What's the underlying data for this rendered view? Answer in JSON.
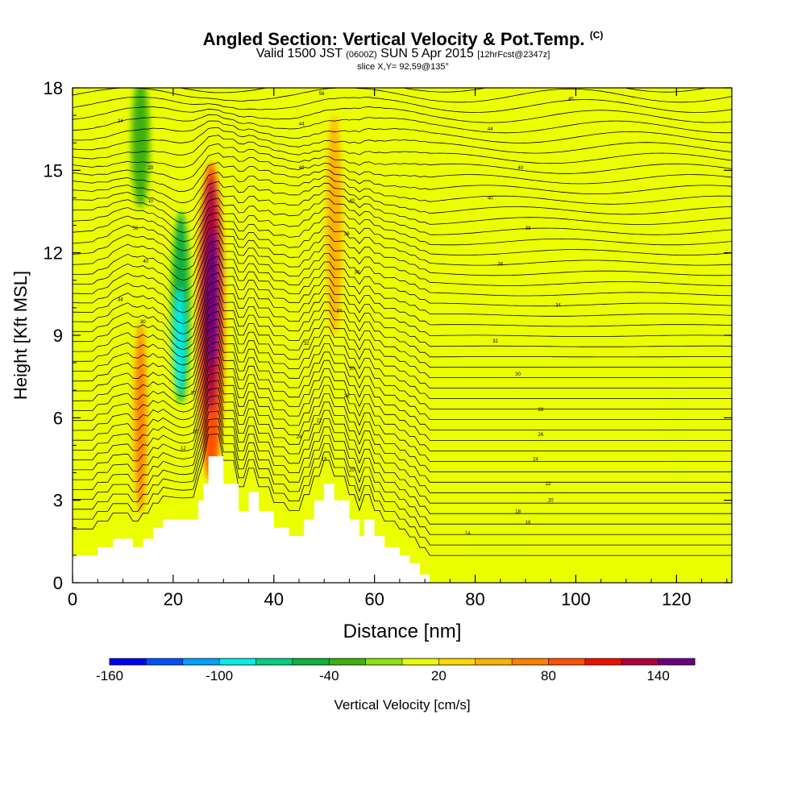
{
  "header": {
    "title_main": "Angled Section: Vertical Velocity & Pot.Temp.",
    "title_tag": "(C)",
    "valid_a": "Valid 1500 JST",
    "valid_b": "(0600Z)",
    "valid_c": "SUN 5 Apr 2015",
    "valid_d": "[12hrFcst@2347z]",
    "slice": "slice X,Y= 92,59@135°"
  },
  "chart_data": {
    "type": "heatmap",
    "xlabel": "Distance [nm]",
    "ylabel": "Height [Kft MSL]",
    "xlim": [
      0,
      131
    ],
    "ylim": [
      0,
      18
    ],
    "xticks": [
      0,
      20,
      40,
      60,
      80,
      100,
      120
    ],
    "yticks": [
      0,
      3,
      6,
      9,
      12,
      15,
      18
    ],
    "colorbar": {
      "label": "Vertical Velocity [cm/s]",
      "ticks": [
        -160,
        -100,
        -40,
        20,
        80,
        140
      ],
      "levels": [
        -160,
        -140,
        -120,
        -100,
        -80,
        -60,
        -40,
        -20,
        0,
        20,
        40,
        60,
        80,
        100,
        120,
        140,
        160
      ],
      "colors": [
        "#0000ff",
        "#0050ff",
        "#00a0ff",
        "#00f0e8",
        "#00d080",
        "#10b040",
        "#40b010",
        "#90e010",
        "#e8ff00",
        "#ffd800",
        "#ffb000",
        "#ff8000",
        "#ff5000",
        "#ee1000",
        "#b00040",
        "#6a0080"
      ]
    },
    "terrain": [
      [
        0,
        1
      ],
      [
        5,
        1
      ],
      [
        5,
        1.3
      ],
      [
        8,
        1.3
      ],
      [
        8,
        1.6
      ],
      [
        12,
        1.6
      ],
      [
        12,
        1.3
      ],
      [
        14,
        1.3
      ],
      [
        14,
        1.6
      ],
      [
        16,
        1.6
      ],
      [
        16,
        2
      ],
      [
        18,
        2
      ],
      [
        18,
        2.3
      ],
      [
        25,
        2.3
      ],
      [
        25,
        3
      ],
      [
        26,
        3
      ],
      [
        26,
        3.6
      ],
      [
        27,
        3.6
      ],
      [
        27,
        4.6
      ],
      [
        30,
        4.6
      ],
      [
        30,
        3.6
      ],
      [
        33,
        3.6
      ],
      [
        33,
        2.6
      ],
      [
        35,
        2.6
      ],
      [
        35,
        3.3
      ],
      [
        37,
        3.3
      ],
      [
        37,
        2.6
      ],
      [
        40,
        2.6
      ],
      [
        40,
        2
      ],
      [
        43,
        2
      ],
      [
        43,
        1.7
      ],
      [
        46,
        1.7
      ],
      [
        46,
        2.3
      ],
      [
        48,
        2.3
      ],
      [
        48,
        3
      ],
      [
        50,
        3
      ],
      [
        50,
        3.6
      ],
      [
        52,
        3.6
      ],
      [
        52,
        3
      ],
      [
        55,
        3
      ],
      [
        55,
        2.3
      ],
      [
        57,
        2.3
      ],
      [
        57,
        1.7
      ],
      [
        58,
        1.7
      ],
      [
        58,
        2.3
      ],
      [
        60,
        2.3
      ],
      [
        60,
        1.7
      ],
      [
        62,
        1.7
      ],
      [
        62,
        1.3
      ],
      [
        65,
        1.3
      ],
      [
        65,
        1
      ],
      [
        67,
        1
      ],
      [
        67,
        0.7
      ],
      [
        69,
        0.7
      ],
      [
        69,
        0.3
      ],
      [
        71,
        0.3
      ],
      [
        71,
        0
      ]
    ],
    "velocity_features": [
      {
        "x": 27.5,
        "y": 9.5,
        "w": 5.2,
        "h": 11.6,
        "value": 80
      },
      {
        "x": 27.5,
        "y": 10.5,
        "w": 3.8,
        "h": 8.6,
        "value": 120
      },
      {
        "x": 27.8,
        "y": 10.3,
        "w": 2.4,
        "h": 5.0,
        "value": 150
      },
      {
        "x": 21.5,
        "y": 10,
        "w": 3.6,
        "h": 7.0,
        "value": -60
      },
      {
        "x": 21.2,
        "y": 8.8,
        "w": 2.3,
        "h": 3.8,
        "value": -100
      },
      {
        "x": 13.5,
        "y": 6,
        "w": 2.4,
        "h": 7.0,
        "value": 60
      },
      {
        "x": 13.5,
        "y": 16,
        "w": 3.6,
        "h": 4.8,
        "value": -40
      },
      {
        "x": 52,
        "y": 13,
        "w": 3.2,
        "h": 8.0,
        "value": 40
      },
      {
        "x": 66,
        "y": 13,
        "w": 2.4,
        "h": 10.0,
        "value": 0
      },
      {
        "x": 120,
        "y": 6,
        "w": 4.6,
        "h": 6.0,
        "value": 0
      },
      {
        "x": 85,
        "y": 1.4,
        "w": 14.0,
        "h": 1.1,
        "value": 0
      }
    ],
    "isentrope_labels": [
      {
        "x": 9.5,
        "y": 16.8,
        "text": "24"
      },
      {
        "x": 15.5,
        "y": 15.1,
        "text": "20"
      },
      {
        "x": 15.5,
        "y": 13.9,
        "text": "10"
      },
      {
        "x": 12.5,
        "y": 12.9,
        "text": "56"
      },
      {
        "x": 14.5,
        "y": 11.7,
        "text": "40"
      },
      {
        "x": 9.5,
        "y": 10.3,
        "text": "34"
      },
      {
        "x": 14,
        "y": 9.5,
        "text": "30"
      },
      {
        "x": 24,
        "y": 6.9,
        "text": "10"
      },
      {
        "x": 24.5,
        "y": 5.5,
        "text": "20"
      },
      {
        "x": 22,
        "y": 4.9,
        "text": "12"
      },
      {
        "x": 49.5,
        "y": 17.8,
        "text": "56"
      },
      {
        "x": 45.5,
        "y": 16.7,
        "text": "44"
      },
      {
        "x": 45.5,
        "y": 15.1,
        "text": "40"
      },
      {
        "x": 55.5,
        "y": 13.9,
        "text": "40"
      },
      {
        "x": 54.5,
        "y": 12.7,
        "text": "36"
      },
      {
        "x": 56.5,
        "y": 11.3,
        "text": "34"
      },
      {
        "x": 53,
        "y": 9.9,
        "text": "34"
      },
      {
        "x": 46.5,
        "y": 8.7,
        "text": "32"
      },
      {
        "x": 55.5,
        "y": 7.8,
        "text": "30"
      },
      {
        "x": 54.5,
        "y": 6.8,
        "text": "28"
      },
      {
        "x": 49,
        "y": 5.9,
        "text": "22"
      },
      {
        "x": 45,
        "y": 5.3,
        "text": "24"
      },
      {
        "x": 50,
        "y": 4.5,
        "text": "18"
      },
      {
        "x": 55.5,
        "y": 4.1,
        "text": "20"
      },
      {
        "x": 99,
        "y": 17.6,
        "text": "40"
      },
      {
        "x": 83,
        "y": 16.5,
        "text": "44"
      },
      {
        "x": 89,
        "y": 15.1,
        "text": "40"
      },
      {
        "x": 83,
        "y": 14.0,
        "text": "40"
      },
      {
        "x": 90.5,
        "y": 12.9,
        "text": "38"
      },
      {
        "x": 85,
        "y": 11.6,
        "text": "36"
      },
      {
        "x": 96.5,
        "y": 10.1,
        "text": "34"
      },
      {
        "x": 84,
        "y": 8.8,
        "text": "32"
      },
      {
        "x": 88.5,
        "y": 7.6,
        "text": "30"
      },
      {
        "x": 93,
        "y": 6.3,
        "text": "28"
      },
      {
        "x": 93,
        "y": 5.4,
        "text": "26"
      },
      {
        "x": 92,
        "y": 4.5,
        "text": "24"
      },
      {
        "x": 94.5,
        "y": 3.6,
        "text": "22"
      },
      {
        "x": 95,
        "y": 3.0,
        "text": "20"
      },
      {
        "x": 88.5,
        "y": 2.6,
        "text": "18"
      },
      {
        "x": 90.5,
        "y": 2.2,
        "text": "16"
      },
      {
        "x": 78.5,
        "y": 1.8,
        "text": "14"
      }
    ]
  }
}
